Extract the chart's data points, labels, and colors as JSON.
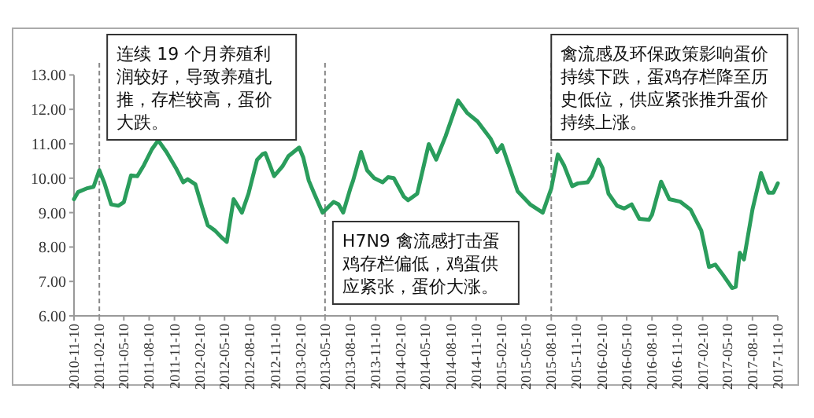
{
  "chart_data": {
    "type": "line",
    "x": [
      "2010-11-10",
      "2010-11-25",
      "2010-12-25",
      "2011-01-20",
      "2011-02-10",
      "2011-03-01",
      "2011-03-25",
      "2011-04-20",
      "2011-05-10",
      "2011-06-05",
      "2011-06-28",
      "2011-07-22",
      "2011-08-20",
      "2011-09-12",
      "2011-10-12",
      "2011-11-15",
      "2011-12-12",
      "2011-12-28",
      "2012-01-25",
      "2012-02-18",
      "2012-03-10",
      "2012-04-05",
      "2012-05-03",
      "2012-05-18",
      "2012-06-12",
      "2012-07-12",
      "2012-08-05",
      "2012-09-05",
      "2012-09-25",
      "2012-10-05",
      "2012-11-06",
      "2012-12-06",
      "2012-12-28",
      "2013-02-05",
      "2013-02-20",
      "2013-03-12",
      "2013-04-01",
      "2013-05-01",
      "2013-06-10",
      "2013-06-28",
      "2013-07-15",
      "2013-08-10",
      "2013-08-20",
      "2013-09-18",
      "2013-10-10",
      "2013-11-05",
      "2013-12-05",
      "2013-12-25",
      "2014-01-15",
      "2014-02-20",
      "2014-03-08",
      "2014-04-10",
      "2014-05-22",
      "2014-06-18",
      "2014-07-22",
      "2014-09-05",
      "2014-10-08",
      "2014-11-15",
      "2015-01-02",
      "2015-01-25",
      "2015-02-12",
      "2015-04-10",
      "2015-05-25",
      "2015-07-10",
      "2015-08-10",
      "2015-09-03",
      "2015-09-25",
      "2015-10-25",
      "2015-11-15",
      "2015-12-20",
      "2016-01-05",
      "2016-01-28",
      "2016-02-12",
      "2016-03-05",
      "2016-04-05",
      "2016-05-01",
      "2016-05-28",
      "2016-06-25",
      "2016-07-30",
      "2016-08-10",
      "2016-09-12",
      "2016-10-12",
      "2016-11-20",
      "2016-12-28",
      "2017-02-05",
      "2017-03-05",
      "2017-03-28",
      "2017-04-25",
      "2017-05-28",
      "2017-06-10",
      "2017-06-25",
      "2017-07-10",
      "2017-08-10",
      "2017-09-10",
      "2017-10-07",
      "2017-10-25",
      "2017-11-10"
    ],
    "values": [
      9.39,
      9.6,
      9.7,
      9.75,
      10.23,
      9.85,
      9.24,
      9.2,
      9.3,
      10.08,
      10.06,
      10.38,
      10.84,
      11.1,
      10.76,
      10.3,
      9.88,
      9.97,
      9.82,
      9.17,
      8.63,
      8.48,
      8.25,
      8.15,
      9.39,
      9.0,
      9.55,
      10.53,
      10.7,
      10.73,
      10.06,
      10.34,
      10.64,
      10.89,
      10.6,
      9.93,
      9.55,
      9.0,
      9.31,
      9.24,
      9.0,
      9.7,
      9.93,
      10.76,
      10.23,
      10.0,
      9.88,
      10.03,
      10.0,
      9.47,
      9.36,
      9.55,
      10.99,
      10.54,
      11.22,
      12.26,
      11.9,
      11.65,
      11.14,
      10.76,
      10.96,
      9.62,
      9.24,
      9.0,
      9.7,
      10.69,
      10.38,
      9.77,
      9.85,
      9.88,
      10.08,
      10.54,
      10.3,
      9.55,
      9.2,
      9.12,
      9.24,
      8.82,
      8.79,
      8.94,
      9.9,
      9.39,
      9.32,
      9.09,
      8.48,
      7.42,
      7.49,
      7.19,
      6.81,
      6.84,
      7.83,
      7.64,
      9.09,
      10.15,
      9.58,
      9.58,
      9.85
    ],
    "color": "#2a9d5c",
    "xlim": [
      "2010-11-10",
      "2017-11-10"
    ],
    "ylim": [
      6,
      13
    ],
    "xticks": [
      "2010-11-10",
      "2011-02-10",
      "2011-05-10",
      "2011-08-10",
      "2011-11-10",
      "2012-02-10",
      "2012-05-10",
      "2012-08-10",
      "2012-11-10",
      "2013-02-10",
      "2013-05-10",
      "2013-08-10",
      "2013-11-10",
      "2014-02-10",
      "2014-05-10",
      "2014-08-10",
      "2014-11-10",
      "2015-02-10",
      "2015-05-10",
      "2015-08-10",
      "2015-11-10",
      "2016-02-10",
      "2016-05-10",
      "2016-08-10",
      "2016-11-10",
      "2017-02-10",
      "2017-05-10",
      "2017-08-10",
      "2017-11-10"
    ],
    "yticks": [
      {
        "value": 6,
        "label": "6.00"
      },
      {
        "value": 7,
        "label": "7.00"
      },
      {
        "value": 8,
        "label": "8.00"
      },
      {
        "value": 9,
        "label": "9.00"
      },
      {
        "value": 10,
        "label": "10.00"
      },
      {
        "value": 11,
        "label": "11.00"
      },
      {
        "value": 12,
        "label": "12.00"
      },
      {
        "value": 13,
        "label": "13.00"
      }
    ],
    "ref_lines": [
      {
        "axis": "x",
        "value": "2011-02-10",
        "label": "连续 19 个月养殖利润较好，导致养殖扎推，存栏较高，蛋价大跌。",
        "color": "#888888",
        "line_style": "dashed"
      },
      {
        "axis": "x",
        "value": "2013-05-10",
        "label": "H7N9 禽流感打击蛋鸡存栏偏低，鸡蛋供应紧张，蛋价大涨。",
        "color": "#888888",
        "line_style": "dashed"
      },
      {
        "axis": "x",
        "value": "2015-08-10",
        "label": "禽流感及环保政策影响蛋价持续下跌，蛋鸡存栏降至历史低位，供应紧张推升蛋价持续上涨。",
        "color": "#888888",
        "line_style": "dashed"
      }
    ]
  }
}
